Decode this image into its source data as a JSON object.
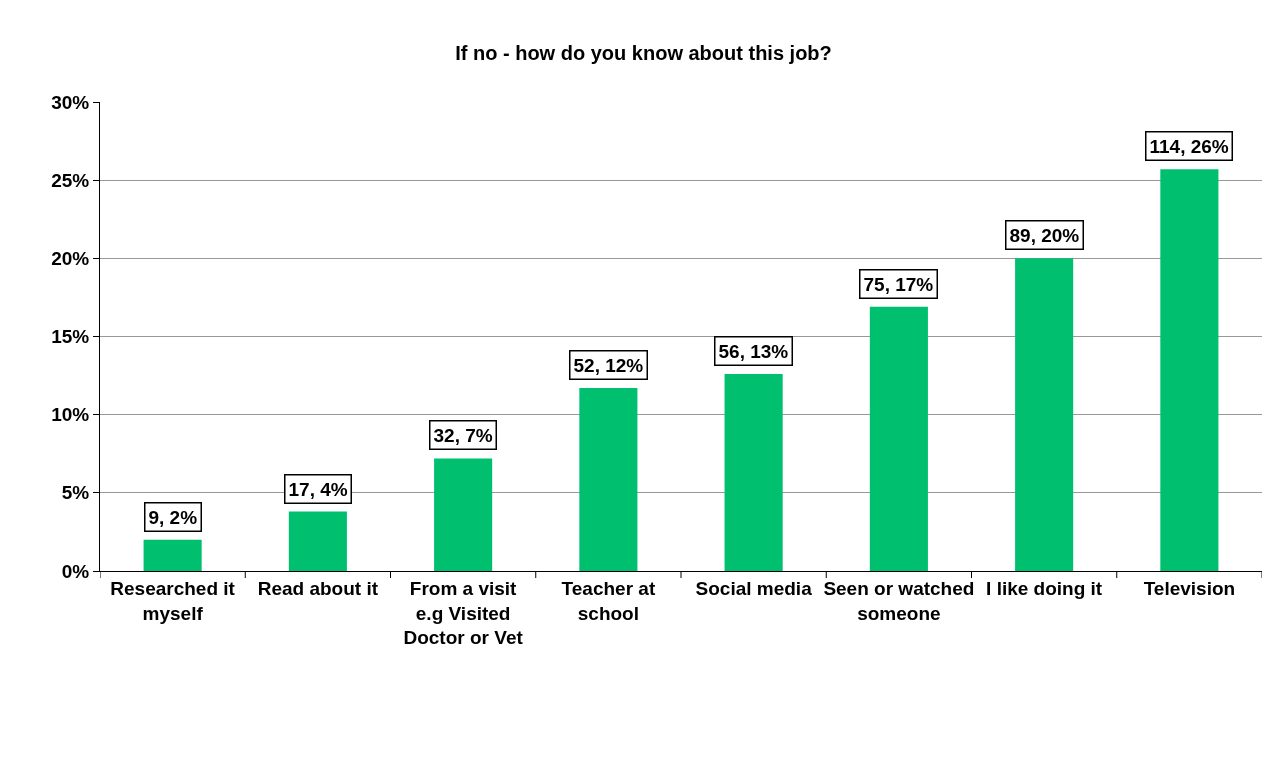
{
  "chart_data": {
    "type": "bar",
    "title": "If no - how do you know about this job?",
    "categories": [
      "Researched it myself",
      "Read about it",
      "From a visit e.g Visited Doctor or Vet",
      "Teacher at school",
      "Social media",
      "Seen or watched someone",
      "I like doing it",
      "Television"
    ],
    "values": [
      2.0,
      3.8,
      7.2,
      11.7,
      12.6,
      16.9,
      20.0,
      25.7
    ],
    "value_labels": [
      "9, 2%",
      "17, 4%",
      "32, 7%",
      "52, 12%",
      "56, 13%",
      "75, 17%",
      "89, 20%",
      "114, 26%"
    ],
    "color": "#00c070",
    "ylim": [
      0,
      30
    ],
    "yticks": [
      {
        "value": 0,
        "label": "0%"
      },
      {
        "value": 5,
        "label": "5%"
      },
      {
        "value": 10,
        "label": "10%"
      },
      {
        "value": 15,
        "label": "15%"
      },
      {
        "value": 20,
        "label": "20%"
      },
      {
        "value": 25,
        "label": "25%"
      },
      {
        "value": 30,
        "label": "30%"
      }
    ],
    "grid": "y",
    "legend": false
  }
}
